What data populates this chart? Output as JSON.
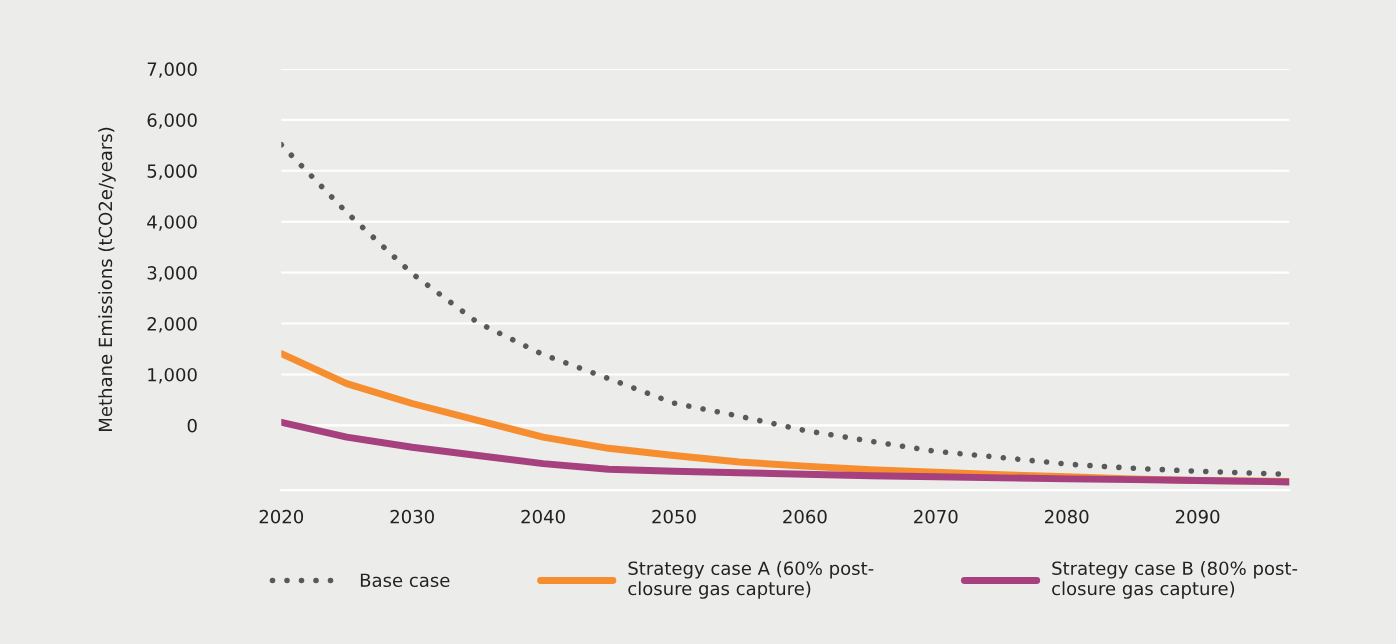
{
  "chart_data": {
    "type": "line",
    "ylabel": "Methane Emissions (tCO2e/years)",
    "x": [
      2020,
      2025,
      2030,
      2035,
      2040,
      2045,
      2050,
      2055,
      2060,
      2065,
      2070,
      2075,
      2080,
      2085,
      2090,
      2097
    ],
    "series": [
      {
        "name": "Base case",
        "color": "#58595b",
        "line_style": "dotted",
        "values": [
          5510,
          4180,
          2980,
          2020,
          1390,
          920,
          437,
          180,
          -100,
          -310,
          -510,
          -630,
          -760,
          -840,
          -900,
          -960
        ]
      },
      {
        "name": "Strategy case A (60% post-closure gas capture)",
        "color": "#f68d2e",
        "line_style": "solid",
        "values": [
          1410,
          820,
          430,
          100,
          -230,
          -450,
          -590,
          -720,
          -800,
          -870,
          -920,
          -970,
          -1010,
          -1050,
          -1080,
          -1100
        ]
      },
      {
        "name": "Strategy case B (80% post-closure gas capture)",
        "color": "#a6407e",
        "line_style": "solid",
        "values": [
          60,
          -230,
          -430,
          -590,
          -750,
          -860,
          -900,
          -930,
          -960,
          -990,
          -1010,
          -1030,
          -1050,
          -1065,
          -1080,
          -1110
        ]
      }
    ],
    "xlim": [
      2020,
      2097
    ],
    "xticks": [
      2020,
      2030,
      2040,
      2050,
      2060,
      2070,
      2080,
      2090
    ],
    "ylim": [
      -1270,
      7000
    ],
    "yticks": [
      {
        "value": 0,
        "label": "0"
      },
      {
        "value": 1000,
        "label": "1,000"
      },
      {
        "value": 2000,
        "label": "2,000"
      },
      {
        "value": 3000,
        "label": "3,000"
      },
      {
        "value": 4000,
        "label": "4,000"
      },
      {
        "value": 5000,
        "label": "5,000"
      },
      {
        "value": 6000,
        "label": "6,000"
      },
      {
        "value": 7000,
        "label": "7,000"
      }
    ],
    "grid": "y",
    "legend": "bottom",
    "marker": "none"
  }
}
